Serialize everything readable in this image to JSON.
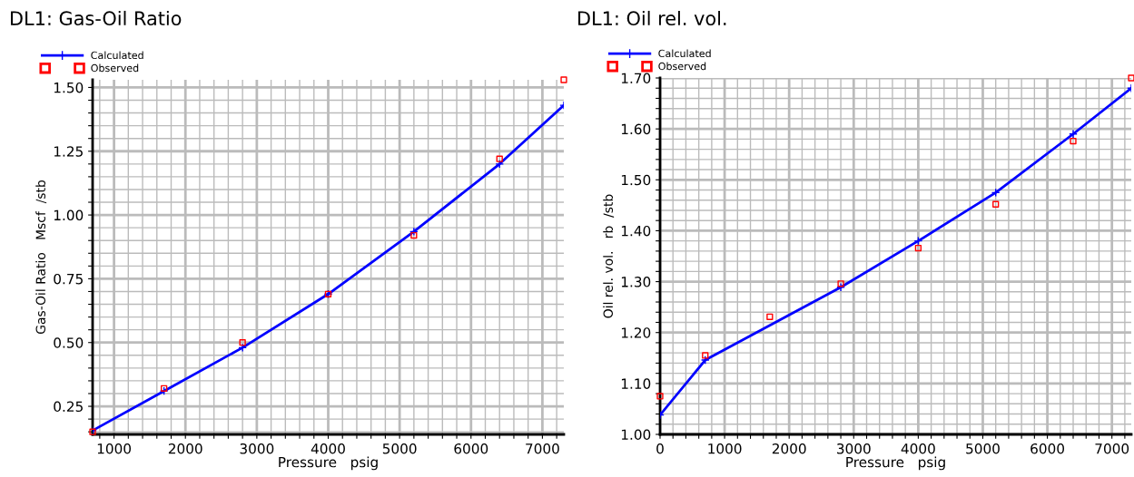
{
  "chart_data": [
    {
      "type": "line",
      "title": "DL1: Gas-Oil Ratio",
      "xlabel": "Pressure   psig",
      "ylabel": "Gas-Oil Ratio   Mscf  /stb",
      "legend": "top left",
      "grid": true,
      "xlim": [
        700,
        7300
      ],
      "ylim": [
        0.14,
        1.53
      ],
      "xticks": [
        {
          "value": 800,
          "label": null
        },
        1000,
        {
          "value": 1200,
          "label": null
        },
        {
          "value": 1400,
          "label": null
        },
        {
          "value": 1600,
          "label": null
        },
        {
          "value": 1800,
          "label": null
        },
        2000,
        {
          "value": 2200,
          "label": null
        },
        {
          "value": 2400,
          "label": null
        },
        {
          "value": 2600,
          "label": null
        },
        {
          "value": 2800,
          "label": null
        },
        3000,
        {
          "value": 3200,
          "label": null
        },
        {
          "value": 3400,
          "label": null
        },
        {
          "value": 3600,
          "label": null
        },
        {
          "value": 3800,
          "label": null
        },
        4000,
        {
          "value": 4200,
          "label": null
        },
        {
          "value": 4400,
          "label": null
        },
        {
          "value": 4600,
          "label": null
        },
        {
          "value": 4800,
          "label": null
        },
        5000,
        {
          "value": 5200,
          "label": null
        },
        {
          "value": 5400,
          "label": null
        },
        {
          "value": 5600,
          "label": null
        },
        {
          "value": 5800,
          "label": null
        },
        6000,
        {
          "value": 6200,
          "label": null
        },
        {
          "value": 6400,
          "label": null
        },
        {
          "value": 6600,
          "label": null
        },
        {
          "value": 6800,
          "label": null
        },
        7000,
        {
          "value": 7200,
          "label": null
        }
      ],
      "yticks": [
        {
          "value": 0.15,
          "label": null
        },
        {
          "value": 0.2,
          "label": null
        },
        {
          "value": 0.25,
          "label": "0.25"
        },
        {
          "value": 0.3,
          "label": null
        },
        {
          "value": 0.35,
          "label": null
        },
        {
          "value": 0.4,
          "label": null
        },
        {
          "value": 0.45,
          "label": null
        },
        {
          "value": 0.5,
          "label": "0.50"
        },
        {
          "value": 0.55,
          "label": null
        },
        {
          "value": 0.6,
          "label": null
        },
        {
          "value": 0.65,
          "label": null
        },
        {
          "value": 0.7,
          "label": null
        },
        {
          "value": 0.75,
          "label": "0.75"
        },
        {
          "value": 0.8,
          "label": null
        },
        {
          "value": 0.85,
          "label": null
        },
        {
          "value": 0.9,
          "label": null
        },
        {
          "value": 0.95,
          "label": null
        },
        {
          "value": 1.0,
          "label": "1.00"
        },
        {
          "value": 1.05,
          "label": null
        },
        {
          "value": 1.1,
          "label": null
        },
        {
          "value": 1.15,
          "label": null
        },
        {
          "value": 1.2,
          "label": null
        },
        {
          "value": 1.25,
          "label": "1.25"
        },
        {
          "value": 1.3,
          "label": null
        },
        {
          "value": 1.35,
          "label": null
        },
        {
          "value": 1.4,
          "label": null
        },
        {
          "value": 1.45,
          "label": null
        },
        {
          "value": 1.5,
          "label": "1.50"
        }
      ],
      "series": [
        {
          "name": "Calculated",
          "color": "#0000ff",
          "marker": "cross",
          "line_style": "solid",
          "x": [
            700,
            1700,
            2800,
            4000,
            5200,
            6400,
            7300
          ],
          "values": [
            0.155,
            0.31,
            0.48,
            0.69,
            0.935,
            1.2,
            1.43
          ]
        },
        {
          "name": "Observed",
          "type": "scatter",
          "color": "#ff0000",
          "marker": "square",
          "x": [
            700,
            1700,
            2800,
            4000,
            5200,
            6400,
            7300
          ],
          "values": [
            0.15,
            0.32,
            0.5,
            0.69,
            0.92,
            1.22,
            1.53
          ]
        }
      ]
    },
    {
      "type": "line",
      "title": "DL1: Oil rel. vol.",
      "xlabel": "Pressure   psig",
      "ylabel": "Oil rel. vol.   rb  /stb",
      "legend": "top left",
      "grid": true,
      "xlim": [
        0,
        7300
      ],
      "ylim": [
        1.0,
        1.7
      ],
      "xticks": [
        0,
        {
          "value": 200,
          "label": null
        },
        {
          "value": 400,
          "label": null
        },
        {
          "value": 600,
          "label": null
        },
        {
          "value": 800,
          "label": null
        },
        1000,
        {
          "value": 1200,
          "label": null
        },
        {
          "value": 1400,
          "label": null
        },
        {
          "value": 1600,
          "label": null
        },
        {
          "value": 1800,
          "label": null
        },
        2000,
        {
          "value": 2200,
          "label": null
        },
        {
          "value": 2400,
          "label": null
        },
        {
          "value": 2600,
          "label": null
        },
        {
          "value": 2800,
          "label": null
        },
        3000,
        {
          "value": 3200,
          "label": null
        },
        {
          "value": 3400,
          "label": null
        },
        {
          "value": 3600,
          "label": null
        },
        {
          "value": 3800,
          "label": null
        },
        4000,
        {
          "value": 4200,
          "label": null
        },
        {
          "value": 4400,
          "label": null
        },
        {
          "value": 4600,
          "label": null
        },
        {
          "value": 4800,
          "label": null
        },
        5000,
        {
          "value": 5200,
          "label": null
        },
        {
          "value": 5400,
          "label": null
        },
        {
          "value": 5600,
          "label": null
        },
        {
          "value": 5800,
          "label": null
        },
        6000,
        {
          "value": 6200,
          "label": null
        },
        {
          "value": 6400,
          "label": null
        },
        {
          "value": 6600,
          "label": null
        },
        {
          "value": 6800,
          "label": null
        },
        7000,
        {
          "value": 7200,
          "label": null
        }
      ],
      "yticks": [
        {
          "value": 1.0,
          "label": "1.00"
        },
        {
          "value": 1.02,
          "label": null
        },
        {
          "value": 1.04,
          "label": null
        },
        {
          "value": 1.06,
          "label": null
        },
        {
          "value": 1.08,
          "label": null
        },
        {
          "value": 1.1,
          "label": "1.10"
        },
        {
          "value": 1.12,
          "label": null
        },
        {
          "value": 1.14,
          "label": null
        },
        {
          "value": 1.16,
          "label": null
        },
        {
          "value": 1.18,
          "label": null
        },
        {
          "value": 1.2,
          "label": "1.20"
        },
        {
          "value": 1.22,
          "label": null
        },
        {
          "value": 1.24,
          "label": null
        },
        {
          "value": 1.26,
          "label": null
        },
        {
          "value": 1.28,
          "label": null
        },
        {
          "value": 1.3,
          "label": "1.30"
        },
        {
          "value": 1.32,
          "label": null
        },
        {
          "value": 1.34,
          "label": null
        },
        {
          "value": 1.36,
          "label": null
        },
        {
          "value": 1.38,
          "label": null
        },
        {
          "value": 1.4,
          "label": "1.40"
        },
        {
          "value": 1.42,
          "label": null
        },
        {
          "value": 1.44,
          "label": null
        },
        {
          "value": 1.46,
          "label": null
        },
        {
          "value": 1.48,
          "label": null
        },
        {
          "value": 1.5,
          "label": "1.50"
        },
        {
          "value": 1.52,
          "label": null
        },
        {
          "value": 1.54,
          "label": null
        },
        {
          "value": 1.56,
          "label": null
        },
        {
          "value": 1.58,
          "label": null
        },
        {
          "value": 1.6,
          "label": "1.60"
        },
        {
          "value": 1.62,
          "label": null
        },
        {
          "value": 1.64,
          "label": null
        },
        {
          "value": 1.66,
          "label": null
        },
        {
          "value": 1.68,
          "label": null
        },
        {
          "value": 1.7,
          "label": "1.70"
        }
      ],
      "series": [
        {
          "name": "Calculated",
          "color": "#0000ff",
          "marker": "cross",
          "line_style": "solid",
          "x": [
            0,
            700,
            2800,
            4000,
            5200,
            6400,
            7300
          ],
          "values": [
            1.038,
            1.146,
            1.289,
            1.38,
            1.475,
            1.59,
            1.68
          ]
        },
        {
          "name": "Observed",
          "type": "scatter",
          "color": "#ff0000",
          "marker": "square",
          "x": [
            0,
            700,
            1700,
            2800,
            4000,
            5200,
            6400,
            7300
          ],
          "values": [
            1.075,
            1.155,
            1.231,
            1.296,
            1.366,
            1.452,
            1.576,
            1.7
          ]
        }
      ]
    }
  ]
}
